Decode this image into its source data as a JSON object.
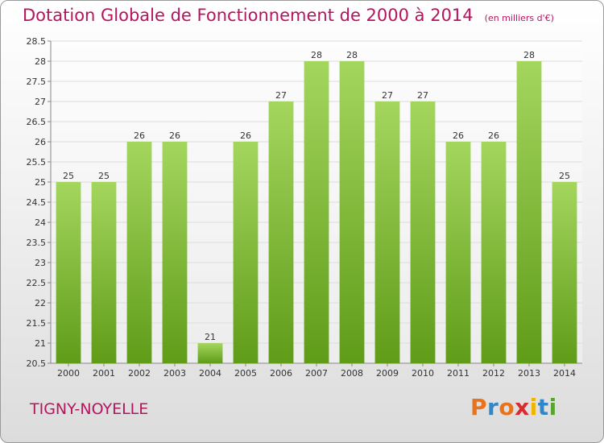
{
  "header": {
    "title": "Dotation Globale de Fonctionnement de 2000 à 2014",
    "unit": "(en milliers d'€)"
  },
  "footer": {
    "commune": "TIGNY-NOYELLE",
    "logo": "Proxiti",
    "logo_colors": [
      "#e8731c",
      "#2f86c8",
      "#e8731c",
      "#d92b2b",
      "#f0b400",
      "#2f86c8",
      "#5aa531"
    ]
  },
  "colors": {
    "title": "#b5145f",
    "bar_light": "#a4d65e",
    "bar_dark": "#5f9c18",
    "grid": "#dcdcdc",
    "axis_text": "#333333"
  },
  "chart_data": {
    "type": "bar",
    "title": "Dotation Globale de Fonctionnement de 2000 à 2014",
    "subtitle": "(en milliers d'€)",
    "xlabel": "",
    "ylabel": "",
    "categories": [
      "2000",
      "2001",
      "2002",
      "2003",
      "2004",
      "2005",
      "2006",
      "2007",
      "2008",
      "2009",
      "2010",
      "2011",
      "2012",
      "2013",
      "2014"
    ],
    "values": [
      25,
      25,
      26,
      26,
      21,
      26,
      27,
      28,
      28,
      27,
      27,
      26,
      26,
      28,
      25
    ],
    "ylim": [
      20.5,
      28.5
    ],
    "yticks": [
      "20.5",
      "21",
      "21.5",
      "22",
      "22.5",
      "23",
      "23.5",
      "24",
      "24.5",
      "25",
      "25.5",
      "26",
      "26.5",
      "27",
      "27.5",
      "28",
      "28.5"
    ],
    "grid": true,
    "data_labels": true
  }
}
